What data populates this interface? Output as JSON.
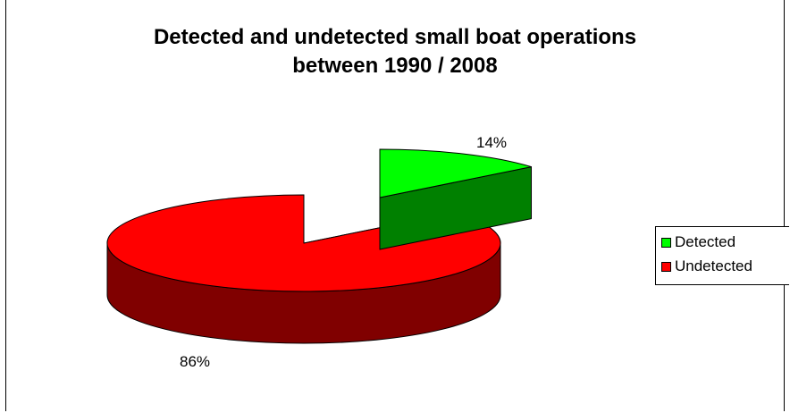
{
  "chart_data": {
    "type": "pie",
    "title": "Detected and undetected small boat operations between 1990 / 2008",
    "title_lines": [
      "Detected and undetected small boat operations",
      "between 1990 / 2008"
    ],
    "style": "3d-exploded",
    "slices": [
      {
        "name": "Detected",
        "value": 14,
        "label": "14%",
        "color": "#00ff00",
        "side_color": "#008000"
      },
      {
        "name": "Undetected",
        "value": 86,
        "label": "86%",
        "color": "#ff0000",
        "side_color": "#800000"
      }
    ],
    "legend": {
      "position": "right",
      "entries": [
        "Detected",
        "Undetected"
      ]
    }
  }
}
